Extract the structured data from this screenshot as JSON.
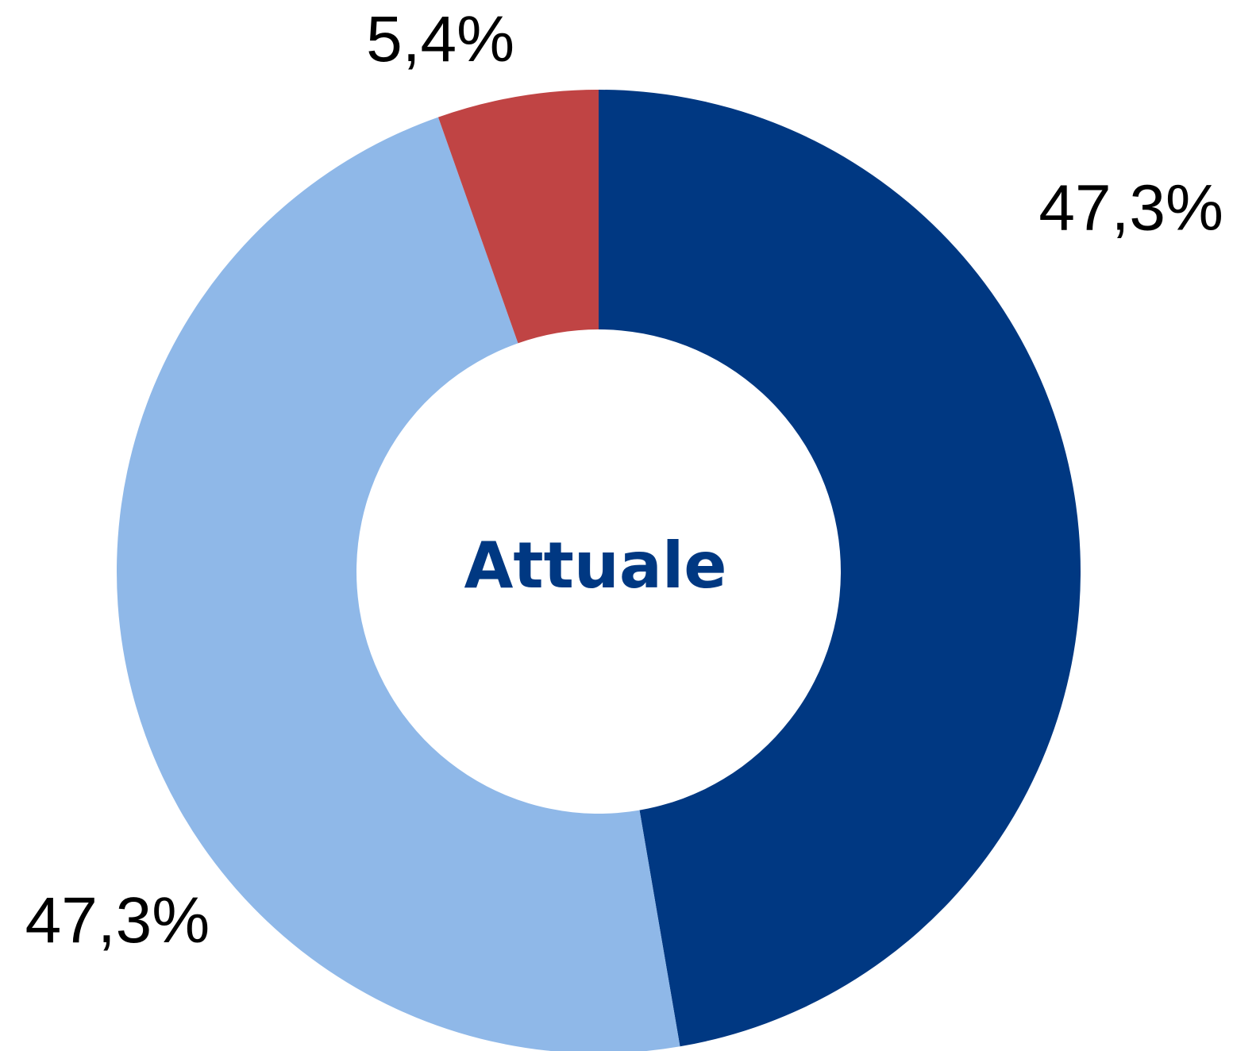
{
  "chart_data": {
    "type": "donut",
    "title": "Attuale",
    "values": [
      47.3,
      47.3,
      5.4
    ],
    "value_labels": [
      "47,3%",
      "47,3%",
      "5,4%"
    ],
    "colors": [
      "#003882",
      "#8fb8e8",
      "#c04444"
    ]
  }
}
